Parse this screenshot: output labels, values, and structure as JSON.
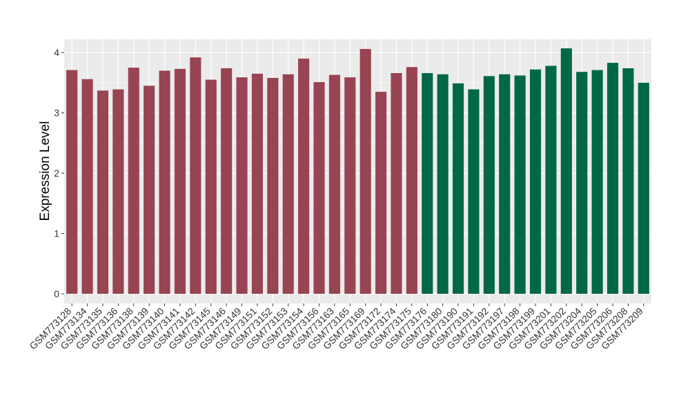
{
  "chart_data": {
    "type": "bar",
    "ylabel": "Expression Level",
    "xlabel": "",
    "ylim": [
      -0.16,
      4.22
    ],
    "yticks": [
      0,
      1,
      2,
      3,
      4
    ],
    "grid": true,
    "colors": {
      "group1": "#984452",
      "group2": "#006846",
      "panel": "#EBEBEB",
      "grid": "#FFFFFF"
    },
    "categories": [
      "GSM773128",
      "GSM773134",
      "GSM773135",
      "GSM773136",
      "GSM773138",
      "GSM773139",
      "GSM773140",
      "GSM773141",
      "GSM773142",
      "GSM773145",
      "GSM773146",
      "GSM773149",
      "GSM773151",
      "GSM773152",
      "GSM773153",
      "GSM773154",
      "GSM773156",
      "GSM773163",
      "GSM773165",
      "GSM773169",
      "GSM773172",
      "GSM773174",
      "GSM773175",
      "GSM773176",
      "GSM773180",
      "GSM773190",
      "GSM773191",
      "GSM773192",
      "GSM773197",
      "GSM773198",
      "GSM773199",
      "GSM773201",
      "GSM773202",
      "GSM773204",
      "GSM773205",
      "GSM773206",
      "GSM773208",
      "GSM773209"
    ],
    "values": [
      3.71,
      3.56,
      3.37,
      3.39,
      3.75,
      3.45,
      3.7,
      3.73,
      3.92,
      3.55,
      3.74,
      3.59,
      3.65,
      3.58,
      3.64,
      3.9,
      3.51,
      3.63,
      3.59,
      4.06,
      3.35,
      3.66,
      3.76,
      3.66,
      3.64,
      3.49,
      3.39,
      3.61,
      3.64,
      3.62,
      3.72,
      3.78,
      4.07,
      3.68,
      3.71,
      3.83,
      3.74,
      3.5
    ],
    "groups": [
      1,
      1,
      1,
      1,
      1,
      1,
      1,
      1,
      1,
      1,
      1,
      1,
      1,
      1,
      1,
      1,
      1,
      1,
      1,
      1,
      1,
      1,
      1,
      2,
      2,
      2,
      2,
      2,
      2,
      2,
      2,
      2,
      2,
      2,
      2,
      2,
      2,
      2
    ]
  }
}
